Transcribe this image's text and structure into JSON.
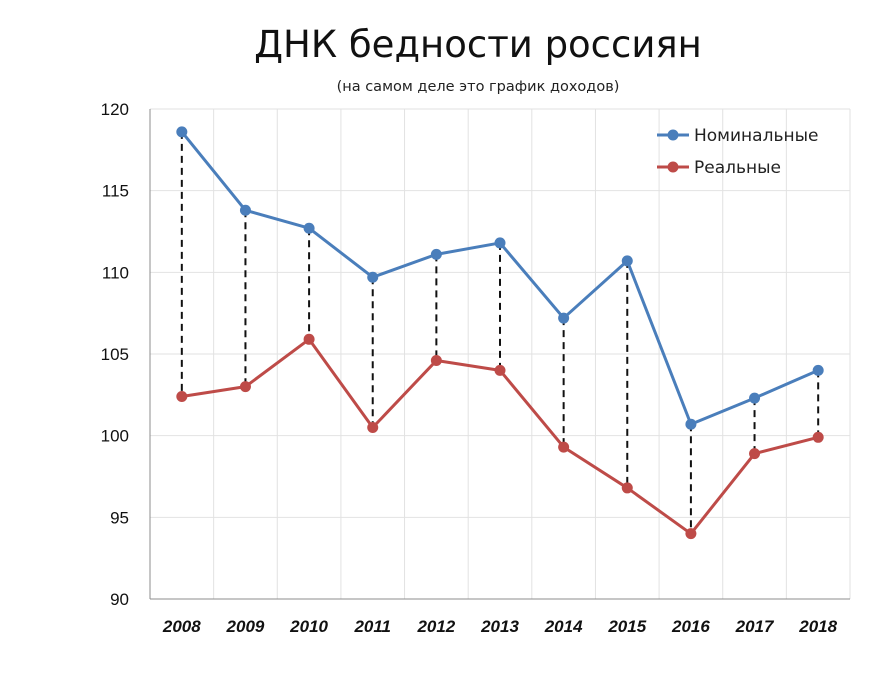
{
  "chart_data": {
    "type": "line",
    "title": "ДНК бедности россиян",
    "subtitle": "(на самом деле это график доходов)",
    "categories": [
      "2008",
      "2009",
      "2010",
      "2011",
      "2012",
      "2013",
      "2014",
      "2015",
      "2016",
      "2017",
      "2018"
    ],
    "series": [
      {
        "name": "Номинальные",
        "color": "#4a7ebb",
        "values": [
          118.6,
          113.8,
          112.7,
          109.7,
          111.1,
          111.8,
          107.2,
          110.7,
          100.7,
          102.3,
          104.0
        ]
      },
      {
        "name": "Реальные",
        "color": "#be4b48",
        "values": [
          102.4,
          103.0,
          105.9,
          100.5,
          104.6,
          104.0,
          99.3,
          96.8,
          94.0,
          98.9,
          99.9
        ]
      }
    ],
    "ylim": [
      90,
      120
    ],
    "yticks": [
      "90",
      "95",
      "100",
      "105",
      "110",
      "115",
      "120"
    ],
    "xlabel": "",
    "ylabel": "",
    "grid": true,
    "legend": "top-right",
    "connectors": "dashed black vertical lines between series at each year"
  }
}
